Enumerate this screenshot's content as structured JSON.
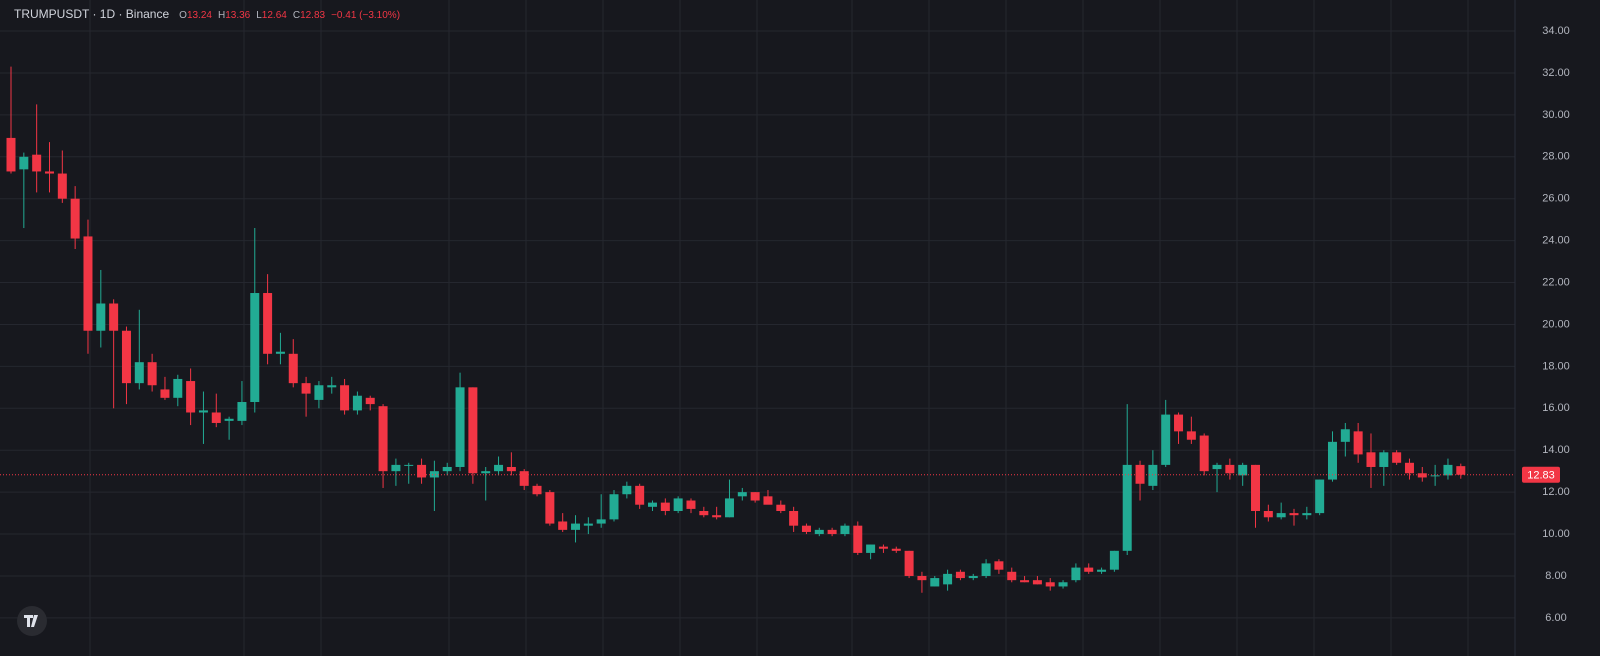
{
  "header": {
    "title": "TRUMPUSDT · 1D · Binance",
    "ohlc": [
      {
        "label": "O",
        "value": 13.24
      },
      {
        "label": "H",
        "value": 13.36
      },
      {
        "label": "L",
        "value": 12.64
      },
      {
        "label": "C",
        "value": 12.83
      }
    ],
    "change": "−0.41 (−3.10%)"
  },
  "chart_data": {
    "type": "candlestick",
    "up_color": "#22ab94",
    "down_color": "#f23645",
    "grid": true,
    "ylim": [
      4.85,
      35.48
    ],
    "yticks": [
      {
        "value": 6,
        "label": "6.00"
      },
      {
        "value": 8,
        "label": "8.00"
      },
      {
        "value": 10,
        "label": "10.00"
      },
      {
        "value": 12,
        "label": "12.00"
      },
      {
        "value": 14,
        "label": "14.00"
      },
      {
        "value": 16,
        "label": "16.00"
      },
      {
        "value": 18,
        "label": "18.00"
      },
      {
        "value": 20,
        "label": "20.00"
      },
      {
        "value": 22,
        "label": "22.00"
      },
      {
        "value": 24,
        "label": "24.00"
      },
      {
        "value": 26,
        "label": "26.00"
      },
      {
        "value": 28,
        "label": "28.00"
      },
      {
        "value": 30,
        "label": "30.00"
      },
      {
        "value": 32,
        "label": "32.00"
      },
      {
        "value": 34,
        "label": "34.00"
      }
    ],
    "current_price": 12.83,
    "open": [
      28.9,
      27.4,
      28.1,
      27.3,
      27.2,
      26.0,
      24.2,
      19.7,
      21.0,
      19.7,
      17.2,
      18.2,
      16.9,
      16.5,
      17.3,
      15.8,
      15.8,
      15.4,
      15.4,
      16.3,
      21.5,
      18.6,
      18.6,
      17.2,
      16.4,
      17.0,
      17.1,
      15.9,
      16.5,
      16.1,
      13.0,
      13.3,
      13.3,
      12.7,
      13.0,
      13.2,
      17.0,
      12.9,
      13.0,
      13.2,
      13.0,
      12.3,
      12.0,
      10.6,
      10.2,
      10.4,
      10.5,
      10.7,
      11.9,
      12.3,
      11.3,
      11.5,
      11.1,
      11.6,
      11.1,
      10.9,
      10.8,
      11.8,
      12.0,
      11.8,
      11.4,
      11.1,
      10.4,
      10.0,
      10.2,
      10.0,
      10.4,
      9.1,
      9.4,
      9.3,
      9.2,
      8.0,
      7.5,
      7.6,
      8.2,
      7.9,
      8.0,
      8.7,
      8.2,
      7.8,
      7.8,
      7.7,
      7.5,
      7.8,
      8.4,
      8.2,
      8.3,
      9.2,
      13.3,
      12.3,
      13.3,
      15.7,
      14.9,
      14.7,
      13.1,
      13.3,
      12.8,
      13.3,
      11.1,
      10.8,
      11.0,
      10.9,
      11.0,
      12.6,
      14.4,
      14.9,
      13.9,
      13.2,
      13.9,
      13.4,
      12.9,
      12.8,
      12.8,
      13.24
    ],
    "high": [
      32.3,
      28.2,
      30.5,
      28.7,
      28.3,
      26.6,
      25.0,
      22.6,
      21.2,
      19.9,
      20.7,
      18.6,
      17.5,
      17.6,
      17.9,
      16.8,
      16.7,
      15.6,
      17.3,
      24.6,
      22.4,
      19.6,
      19.3,
      17.5,
      17.3,
      17.5,
      17.4,
      16.8,
      16.6,
      16.2,
      13.6,
      13.4,
      13.6,
      13.5,
      13.4,
      17.7,
      17.0,
      13.2,
      13.7,
      13.9,
      13.1,
      12.4,
      12.1,
      11.0,
      10.9,
      10.8,
      11.9,
      12.1,
      12.5,
      12.4,
      11.6,
      11.7,
      11.8,
      11.7,
      11.3,
      11.3,
      12.6,
      12.2,
      12.0,
      12.1,
      11.6,
      11.3,
      10.5,
      10.3,
      10.3,
      10.5,
      10.6,
      9.5,
      9.5,
      9.4,
      9.2,
      8.2,
      8.0,
      8.3,
      8.3,
      8.1,
      8.8,
      8.8,
      8.4,
      8.0,
      8.0,
      7.9,
      7.8,
      8.6,
      8.6,
      8.4,
      9.2,
      16.2,
      13.5,
      14.0,
      16.4,
      15.8,
      15.6,
      14.8,
      13.4,
      13.6,
      13.4,
      13.3,
      11.4,
      11.5,
      11.2,
      11.3,
      12.6,
      14.9,
      15.3,
      15.3,
      14.8,
      14.0,
      14.0,
      13.6,
      13.2,
      13.3,
      13.6,
      13.36
    ],
    "low": [
      27.2,
      24.6,
      26.3,
      26.3,
      25.8,
      23.6,
      18.6,
      18.9,
      16.0,
      16.2,
      16.9,
      16.8,
      16.4,
      16.1,
      15.2,
      14.3,
      15.1,
      14.5,
      15.2,
      15.8,
      18.1,
      18.1,
      17.0,
      15.6,
      16.0,
      16.7,
      15.7,
      15.7,
      15.9,
      12.2,
      12.3,
      12.4,
      12.4,
      11.1,
      12.8,
      13.0,
      12.4,
      11.6,
      12.8,
      12.8,
      12.1,
      11.8,
      10.4,
      10.1,
      9.6,
      10.0,
      10.3,
      10.6,
      11.7,
      11.2,
      11.1,
      10.9,
      11.0,
      11.0,
      10.8,
      10.7,
      10.8,
      11.6,
      11.5,
      11.5,
      11.0,
      10.1,
      10.0,
      9.9,
      9.9,
      9.9,
      9.0,
      8.8,
      9.1,
      9.1,
      7.9,
      7.2,
      7.5,
      7.3,
      7.8,
      7.8,
      7.9,
      8.1,
      7.7,
      7.7,
      7.6,
      7.3,
      7.4,
      7.7,
      8.1,
      8.1,
      8.2,
      9.0,
      11.6,
      12.1,
      13.2,
      14.3,
      14.3,
      12.8,
      12.0,
      12.6,
      12.3,
      10.3,
      10.6,
      10.7,
      10.4,
      10.7,
      10.9,
      12.5,
      13.7,
      13.4,
      12.2,
      12.3,
      13.3,
      12.6,
      12.5,
      12.3,
      12.6,
      12.64
    ],
    "close": [
      27.3,
      28.0,
      27.3,
      27.2,
      26.0,
      24.1,
      19.7,
      21.0,
      19.7,
      17.2,
      18.2,
      17.1,
      16.5,
      17.4,
      15.8,
      15.9,
      15.3,
      15.5,
      16.3,
      21.5,
      18.6,
      18.7,
      17.2,
      16.7,
      17.1,
      17.1,
      15.9,
      16.6,
      16.2,
      13.0,
      13.3,
      13.3,
      12.7,
      13.0,
      13.2,
      17.0,
      12.9,
      13.0,
      13.3,
      13.0,
      12.3,
      11.9,
      10.5,
      10.2,
      10.5,
      10.5,
      10.7,
      11.9,
      12.3,
      11.4,
      11.5,
      11.1,
      11.7,
      11.2,
      10.9,
      10.8,
      11.7,
      12.0,
      11.6,
      11.4,
      11.1,
      10.4,
      10.1,
      10.2,
      10.0,
      10.4,
      9.1,
      9.5,
      9.3,
      9.2,
      8.0,
      7.8,
      7.9,
      8.1,
      7.9,
      8.0,
      8.6,
      8.3,
      7.8,
      7.7,
      7.6,
      7.5,
      7.7,
      8.4,
      8.2,
      8.3,
      9.2,
      13.3,
      12.4,
      13.3,
      15.7,
      14.9,
      14.5,
      13.0,
      13.3,
      12.9,
      13.3,
      11.1,
      10.8,
      11.0,
      10.9,
      11.0,
      12.6,
      14.4,
      15.0,
      13.8,
      13.2,
      13.9,
      13.4,
      12.9,
      12.7,
      12.8,
      13.3,
      12.83
    ]
  }
}
